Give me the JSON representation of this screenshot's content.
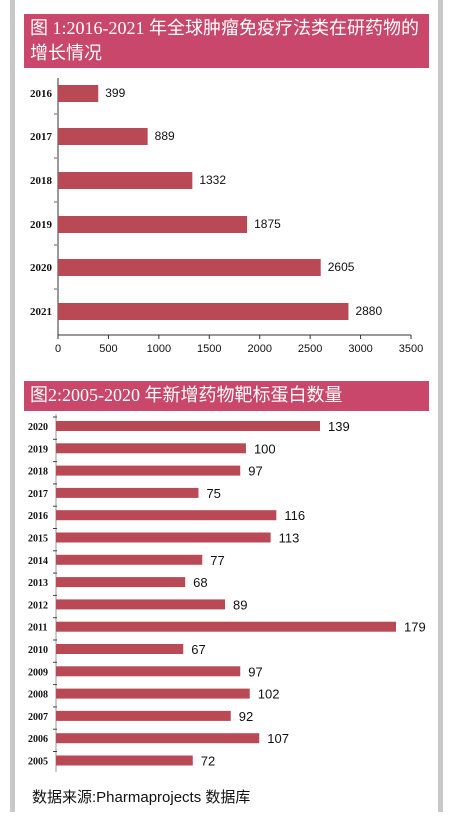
{
  "charts": {
    "chart1": {
      "title": "图 1:2016-2021 年全球肿瘤免疫疗法类在研药物的增长情况"
    },
    "chart2": {
      "title": "图2:2005-2020 年新增药物靶标蛋白数量"
    }
  },
  "source": "数据来源:Pharmaprojects 数据库",
  "colors": {
    "bar": "#b94a55",
    "header": "#c8476a",
    "frame": "#c8c8c8"
  },
  "chart_data": [
    {
      "type": "bar",
      "orientation": "horizontal",
      "title": "图 1:2016-2021 年全球肿瘤免疫疗法类在研药物的增长情况",
      "categories": [
        "2016",
        "2017",
        "2018",
        "2019",
        "2020",
        "2021"
      ],
      "values": [
        399,
        889,
        1332,
        1875,
        2605,
        2880
      ],
      "xlim": [
        0,
        3500
      ],
      "xticks": [
        0,
        500,
        1000,
        1500,
        2000,
        2500,
        3000,
        3500
      ],
      "data_labels": true,
      "grid": false
    },
    {
      "type": "bar",
      "orientation": "horizontal",
      "title": "图2:2005-2020 年新增药物靶标蛋白数量",
      "categories": [
        "2020",
        "2019",
        "2018",
        "2017",
        "2016",
        "2015",
        "2014",
        "2013",
        "2012",
        "2011",
        "2010",
        "2009",
        "2008",
        "2007",
        "2006",
        "2005"
      ],
      "values": [
        139,
        100,
        97,
        75,
        116,
        113,
        77,
        68,
        89,
        179,
        67,
        97,
        102,
        92,
        107,
        72
      ],
      "data_labels": true,
      "grid": false
    }
  ]
}
